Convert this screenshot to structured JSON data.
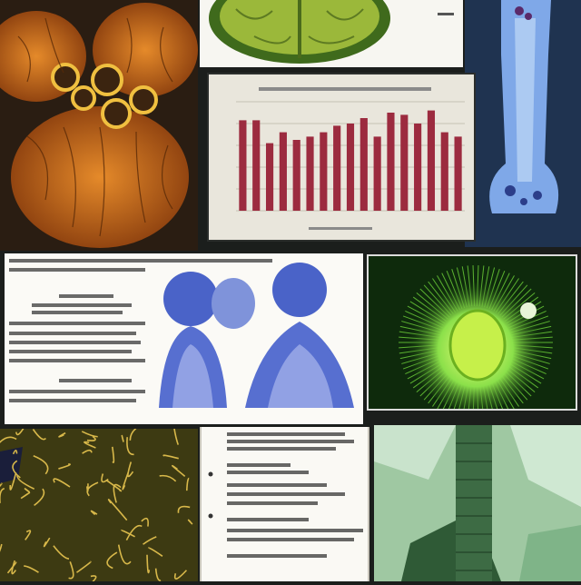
{
  "panels": {
    "heart": {
      "icon": "heart-vessel-icon"
    },
    "brain": {
      "icon": "brain-scan-icon"
    },
    "bone": {
      "icon": "bone-xray-icon"
    },
    "chart": {
      "icon": "bar-chart-icon"
    },
    "figure_doc": {
      "icon": "head-scan-icon"
    },
    "cell": {
      "icon": "glowing-cell-icon"
    },
    "network": {
      "icon": "vein-network-icon"
    },
    "notes_doc": {
      "icon": "document-icon"
    },
    "crystal": {
      "icon": "green-crystal-icon"
    }
  },
  "chart_data": {
    "type": "bar",
    "values": [
      83,
      83,
      62,
      72,
      65,
      68,
      72,
      78,
      80,
      85,
      68,
      90,
      88,
      80,
      92,
      72,
      68
    ],
    "ylim": [
      0,
      100
    ],
    "bar_color": "#9c2b3f",
    "grid": true
  },
  "colors": {
    "background": "#1b1e1c",
    "heart": "#c96b1f",
    "cell_glow": "#8be04a",
    "scan_blue": "#3a56c9",
    "network": "#d8b84a"
  }
}
